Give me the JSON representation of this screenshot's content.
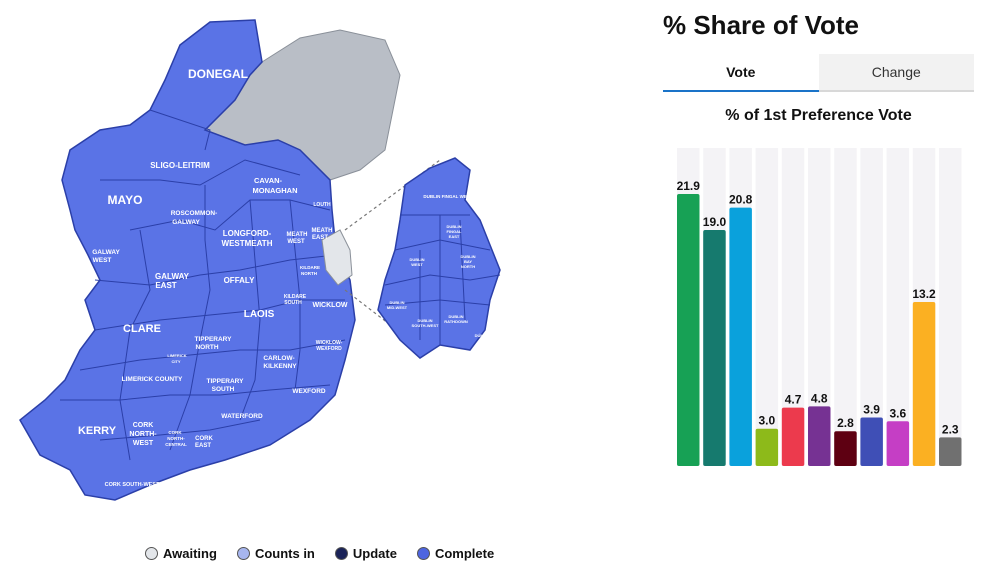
{
  "map": {
    "labels": [
      {
        "id": "donegal",
        "text": "DONEGAL"
      },
      {
        "id": "sligo-leitrim",
        "text": "SLIGO-LEITRIM"
      },
      {
        "id": "mayo",
        "text": "MAYO"
      },
      {
        "id": "cavan-monaghan-1",
        "text": "CAVAN-"
      },
      {
        "id": "cavan-monaghan-2",
        "text": "MONAGHAN"
      },
      {
        "id": "louth",
        "text": "LOUTH"
      },
      {
        "id": "roscommon-galway-1",
        "text": "ROSCOMMON-"
      },
      {
        "id": "roscommon-galway-2",
        "text": "GALWAY"
      },
      {
        "id": "longford-westmeath-1",
        "text": "LONGFORD-"
      },
      {
        "id": "longford-westmeath-2",
        "text": "WESTMEATH"
      },
      {
        "id": "meath-west-1",
        "text": "MEATH"
      },
      {
        "id": "meath-west-2",
        "text": "WEST"
      },
      {
        "id": "meath-east-1",
        "text": "MEATH"
      },
      {
        "id": "meath-east-2",
        "text": "EAST"
      },
      {
        "id": "galway-west-1",
        "text": "GALWAY"
      },
      {
        "id": "galway-west-2",
        "text": "WEST"
      },
      {
        "id": "galway-east-1",
        "text": "GALWAY"
      },
      {
        "id": "galway-east-2",
        "text": "EAST"
      },
      {
        "id": "kildare-north-1",
        "text": "KILDARE"
      },
      {
        "id": "kildare-north-2",
        "text": "NORTH"
      },
      {
        "id": "offaly",
        "text": "OFFALY"
      },
      {
        "id": "kildare-south-1",
        "text": "KILDARE"
      },
      {
        "id": "kildare-south-2",
        "text": "SOUTH"
      },
      {
        "id": "wicklow",
        "text": "WICKLOW"
      },
      {
        "id": "laois",
        "text": "LAOIS"
      },
      {
        "id": "clare",
        "text": "CLARE"
      },
      {
        "id": "tipperary-north-1",
        "text": "TIPPERARY"
      },
      {
        "id": "tipperary-north-2",
        "text": "NORTH"
      },
      {
        "id": "wicklow-wexford-1",
        "text": "WICKLOW-"
      },
      {
        "id": "wicklow-wexford-2",
        "text": "WEXFORD"
      },
      {
        "id": "limerick-city-1",
        "text": "LIMERICK"
      },
      {
        "id": "limerick-city-2",
        "text": "CITY"
      },
      {
        "id": "carlow-kilkenny-1",
        "text": "CARLOW-"
      },
      {
        "id": "carlow-kilkenny-2",
        "text": "KILKENNY"
      },
      {
        "id": "limerick-county",
        "text": "LIMERICK COUNTY"
      },
      {
        "id": "tipperary-south-1",
        "text": "TIPPERARY"
      },
      {
        "id": "tipperary-south-2",
        "text": "SOUTH"
      },
      {
        "id": "wexford",
        "text": "WEXFORD"
      },
      {
        "id": "waterford",
        "text": "WATERFORD"
      },
      {
        "id": "kerry",
        "text": "KERRY"
      },
      {
        "id": "cork-north-west-1",
        "text": "CORK"
      },
      {
        "id": "cork-north-west-2",
        "text": "NORTH-"
      },
      {
        "id": "cork-north-west-3",
        "text": "WEST"
      },
      {
        "id": "cork-north-central-1",
        "text": "CORK"
      },
      {
        "id": "cork-north-central-2",
        "text": "NORTH-"
      },
      {
        "id": "cork-north-central-3",
        "text": "CENTRAL"
      },
      {
        "id": "cork-east-1",
        "text": "CORK"
      },
      {
        "id": "cork-east-2",
        "text": "EAST"
      },
      {
        "id": "cork-south-west",
        "text": "CORK SOUTH-WEST"
      },
      {
        "id": "dublin-fingal-west",
        "text": "DUBLIN FINGAL WEST"
      },
      {
        "id": "dublin-fingal-east-1",
        "text": "DUBLIN"
      },
      {
        "id": "dublin-fingal-east-2",
        "text": "FINGAL"
      },
      {
        "id": "dublin-fingal-east-3",
        "text": "EAST"
      },
      {
        "id": "dublin-west-1",
        "text": "DUBLIN"
      },
      {
        "id": "dublin-west-2",
        "text": "WEST"
      },
      {
        "id": "dublin-bay-north-1",
        "text": "DUBLIN"
      },
      {
        "id": "dublin-bay-north-2",
        "text": "BAY"
      },
      {
        "id": "dublin-bay-north-3",
        "text": "NORTH"
      },
      {
        "id": "dublin-mid-west-1",
        "text": "DUBLIN"
      },
      {
        "id": "dublin-mid-west-2",
        "text": "MID-WEST"
      },
      {
        "id": "dublin-south-west-1",
        "text": "DUBLIN"
      },
      {
        "id": "dublin-south-west-2",
        "text": "SOUTH-WEST"
      },
      {
        "id": "dublin-rathdown-1",
        "text": "DUBLIN"
      },
      {
        "id": "dublin-rathdown-2",
        "text": "RATHDOWN"
      },
      {
        "id": "dun-laoghaire",
        "text": "DÚN"
      }
    ],
    "colors": {
      "complete": "#5a73e6",
      "border": "#2b3fa8",
      "awaiting": "#b9bec6",
      "awaiting_light": "#e3e6ea",
      "counts_in": "#a7b6ef",
      "update": "#1b2358"
    }
  },
  "legend": {
    "items": [
      {
        "label": "Awaiting",
        "color": "#e3e6ea"
      },
      {
        "label": "Counts in",
        "color": "#a7b6ef"
      },
      {
        "label": "Update",
        "color": "#1b2358"
      },
      {
        "label": "Complete",
        "color": "#4d65e0"
      }
    ]
  },
  "panel": {
    "title": "% Share of Vote",
    "tabs": [
      {
        "label": "Vote",
        "active": true
      },
      {
        "label": "Change",
        "active": false
      }
    ],
    "chart_title": "% of 1st Preference Vote"
  },
  "chart_data": {
    "type": "bar",
    "title": "% of 1st Preference Vote",
    "ylim": [
      0,
      25
    ],
    "grid": false,
    "values": [
      21.9,
      19.0,
      20.8,
      3.0,
      4.7,
      4.8,
      2.8,
      3.9,
      3.6,
      13.2,
      2.3
    ],
    "colors": [
      "#17a155",
      "#167a6e",
      "#0aa1dc",
      "#8dba1a",
      "#ec3a4d",
      "#763293",
      "#5e0012",
      "#3f4fb6",
      "#c53ec5",
      "#fbb022",
      "#707070"
    ],
    "labels": [
      "21.9",
      "19.0",
      "20.8",
      "3.0",
      "4.7",
      "4.8",
      "2.8",
      "3.9",
      "3.6",
      "13.2",
      "2.3"
    ]
  }
}
